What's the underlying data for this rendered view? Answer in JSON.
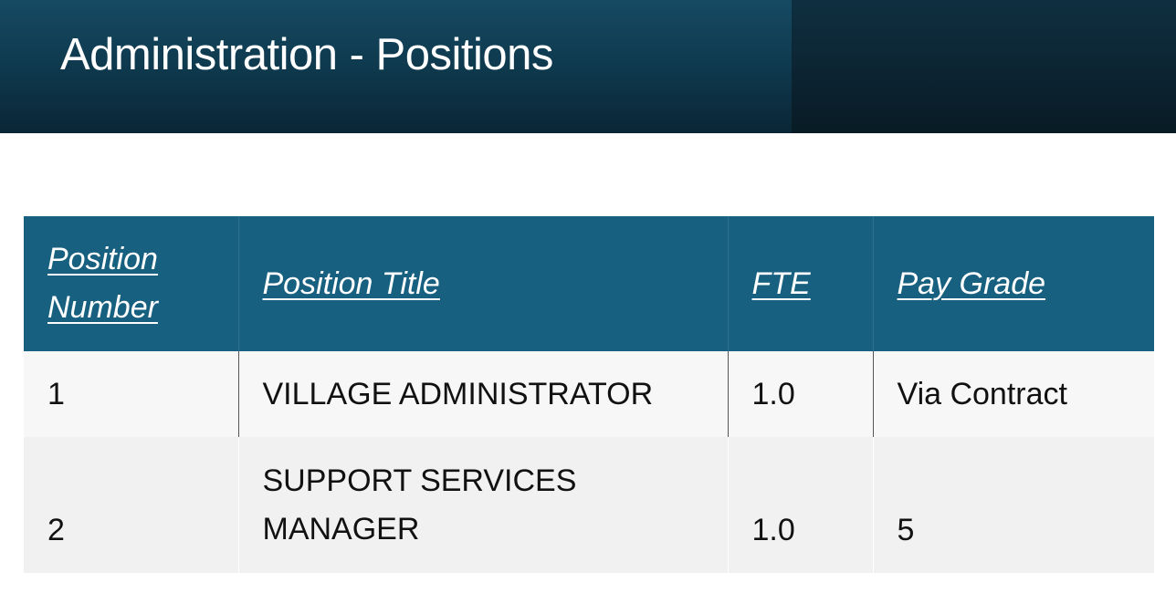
{
  "slide": {
    "title": "Administration - Positions"
  },
  "table": {
    "headers": [
      "Position Number",
      "Position Title",
      "FTE",
      "Pay Grade"
    ],
    "rows": [
      {
        "number": "1",
        "title": "VILLAGE ADMINISTRATOR",
        "fte": "1.0",
        "pay_grade": "Via Contract"
      },
      {
        "number": "2",
        "title": "SUPPORT SERVICES MANAGER",
        "fte": "1.0",
        "pay_grade": "5"
      }
    ]
  },
  "colors": {
    "title_bar": "#0f3b50",
    "header_fill": "#17607f",
    "row_odd": "#f7f7f7",
    "row_even": "#f1f1f1"
  }
}
